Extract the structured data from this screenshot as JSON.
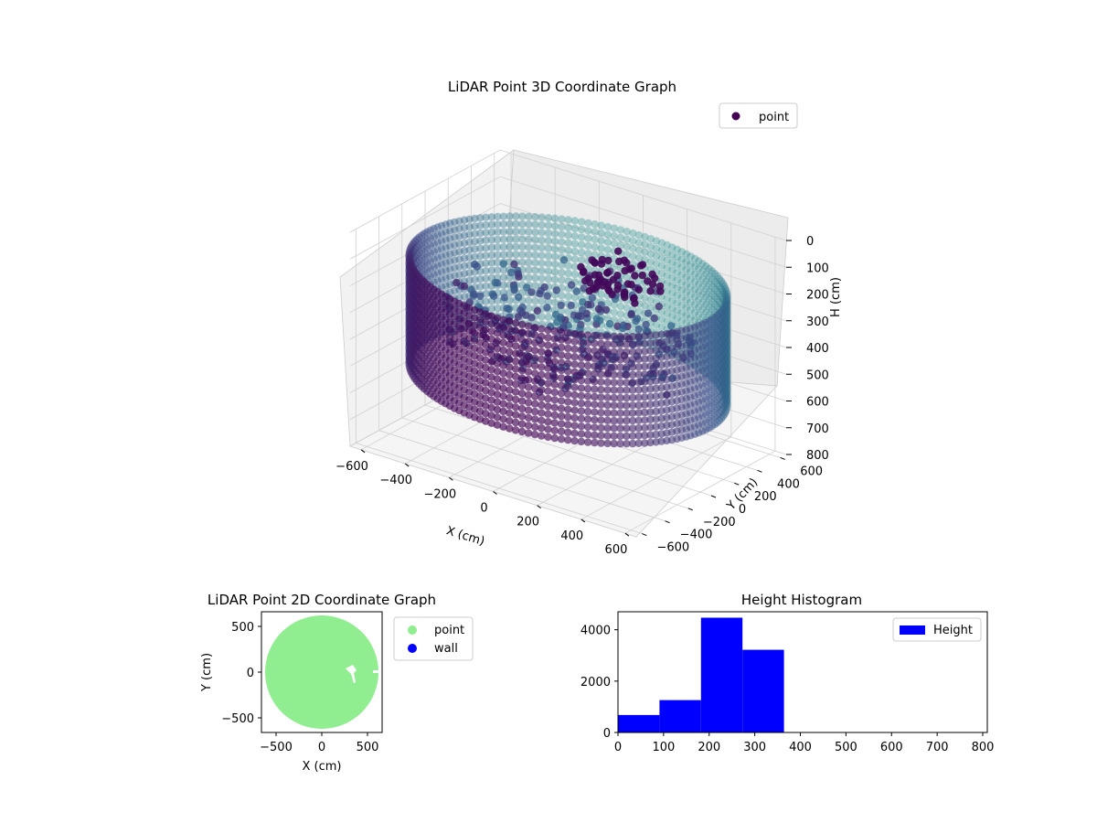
{
  "chart_data": [
    {
      "type": "scatter3d",
      "title": "LiDAR Point 3D Coordinate Graph",
      "xlabel": "X (cm)",
      "ylabel": "Y (cm)",
      "zlabel": "H (cm)",
      "xlim": [
        -650,
        650
      ],
      "ylim": [
        -650,
        650
      ],
      "zlim": [
        800,
        0
      ],
      "x_ticks": [
        "−600",
        "−400",
        "−200",
        "0",
        "200",
        "400",
        "600"
      ],
      "y_ticks": [
        "−600",
        "−400",
        "−200",
        "0",
        "200",
        "400",
        "600"
      ],
      "z_ticks": [
        "0",
        "100",
        "200",
        "300",
        "400",
        "500",
        "600",
        "700",
        "800"
      ],
      "legend": {
        "position": "top-right",
        "entries": [
          {
            "name": "point",
            "color": "#440154"
          }
        ]
      },
      "colormap": "viridis",
      "grid": true,
      "series": [
        {
          "name": "point",
          "description_of_structure": {
            "ring_radius": 640,
            "ring_height_top": 150,
            "ring_height_bottom": 550,
            "interior_cluster_height": [
              250,
              450
            ]
          }
        }
      ]
    },
    {
      "type": "scatter",
      "title": "LiDAR Point 2D Coordinate Graph",
      "xlabel": "X (cm)",
      "ylabel": "Y (cm)",
      "xlim": [
        -660,
        660
      ],
      "ylim": [
        -660,
        660
      ],
      "x_ticks": [
        "−500",
        "0",
        "500"
      ],
      "y_ticks": [
        "−500",
        "0",
        "500"
      ],
      "legend": {
        "position": "outside-right",
        "entries": [
          {
            "name": "point",
            "color": "#90ee90"
          },
          {
            "name": "wall",
            "color": "#0000ff"
          }
        ]
      },
      "series": [
        {
          "name": "point",
          "color": "#90ee90",
          "disk_radius": 620,
          "center": [
            0,
            0
          ]
        },
        {
          "name": "wall",
          "color": "#0000ff"
        }
      ]
    },
    {
      "type": "bar",
      "title": "Height Histogram",
      "xlim": [
        0,
        810
      ],
      "ylim": [
        0,
        4700
      ],
      "x_ticks": [
        "0",
        "100",
        "200",
        "300",
        "400",
        "500",
        "600",
        "700",
        "800"
      ],
      "y_ticks": [
        "0",
        "2000",
        "4000"
      ],
      "legend": {
        "position": "top-right",
        "entries": [
          {
            "name": "Height",
            "color": "#0000ff"
          }
        ]
      },
      "series": [
        {
          "name": "Height",
          "color": "#0000ff",
          "bin_edges": [
            0,
            91,
            182,
            273,
            364
          ],
          "counts": [
            680,
            1260,
            4470,
            3220
          ]
        }
      ]
    }
  ]
}
